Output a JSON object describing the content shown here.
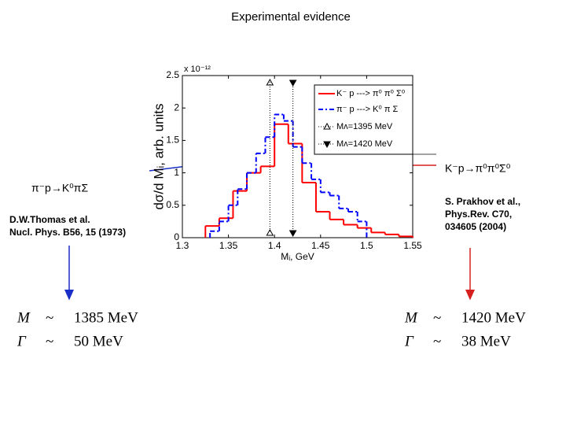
{
  "slide": {
    "title": "Experimental evidence",
    "left_reaction": "π⁻p→K⁰πΣ",
    "left_reference": [
      "D.W.Thomas et al.",
      "Nucl. Phys. B56, 15 (1973)"
    ],
    "right_reaction": "K⁻p→π⁰π⁰Σ⁰",
    "right_reference": [
      "S. Prakhov et al.,",
      "Phys.Rev. C70,",
      "034605 (2004)"
    ],
    "left_formula": [
      [
        "M",
        "~",
        "1385 MeV"
      ],
      [
        "Γ",
        "~",
        "50 MeV"
      ]
    ],
    "right_formula": [
      [
        "M",
        "~",
        "1420 MeV"
      ],
      [
        "Γ",
        "~",
        "38 MeV"
      ]
    ]
  },
  "chart_data": {
    "type": "step",
    "exponent_label": "x 10⁻¹²",
    "y_label": "dσ/d Mᵢ, arb. units",
    "x_label": "Mᵢ, GeV",
    "xlim": [
      1.3,
      1.55
    ],
    "xticks": [
      1.3,
      1.35,
      1.4,
      1.45,
      1.5,
      1.55
    ],
    "ylim": [
      0,
      2.5
    ],
    "yticks": [
      0,
      0.5,
      1,
      1.5,
      2,
      2.5
    ],
    "series": [
      {
        "name": "K⁻ p ---> π⁰ π⁰ Σ⁰",
        "color": "#ff0000",
        "dash": "none",
        "bins": [
          1.325,
          1.34,
          1.355,
          1.37,
          1.385,
          1.4,
          1.415,
          1.43,
          1.445,
          1.46,
          1.475,
          1.49,
          1.505,
          1.52,
          1.535,
          1.55
        ],
        "values": [
          0.18,
          0.3,
          0.72,
          1.0,
          1.1,
          1.75,
          1.45,
          0.85,
          0.4,
          0.28,
          0.2,
          0.15,
          0.08,
          0.05,
          0.02
        ]
      },
      {
        "name": "π⁻ p ---> K⁰ π Σ",
        "color": "#0000ff",
        "dash": "6 3 2 3",
        "bins": [
          1.33,
          1.34,
          1.35,
          1.36,
          1.37,
          1.38,
          1.39,
          1.4,
          1.41,
          1.42,
          1.43,
          1.44,
          1.45,
          1.46,
          1.47,
          1.48,
          1.49,
          1.5
        ],
        "values": [
          0.1,
          0.25,
          0.5,
          0.75,
          1.0,
          1.3,
          1.55,
          1.9,
          1.8,
          1.4,
          1.15,
          0.9,
          0.7,
          0.65,
          0.45,
          0.4,
          0.25
        ]
      }
    ],
    "markers": [
      {
        "name": "Mᴧ=1395 MeV",
        "value": 1.395,
        "symbol": "up"
      },
      {
        "name": "Mᴧ=1420 MeV",
        "value": 1.42,
        "symbol": "down"
      }
    ]
  }
}
